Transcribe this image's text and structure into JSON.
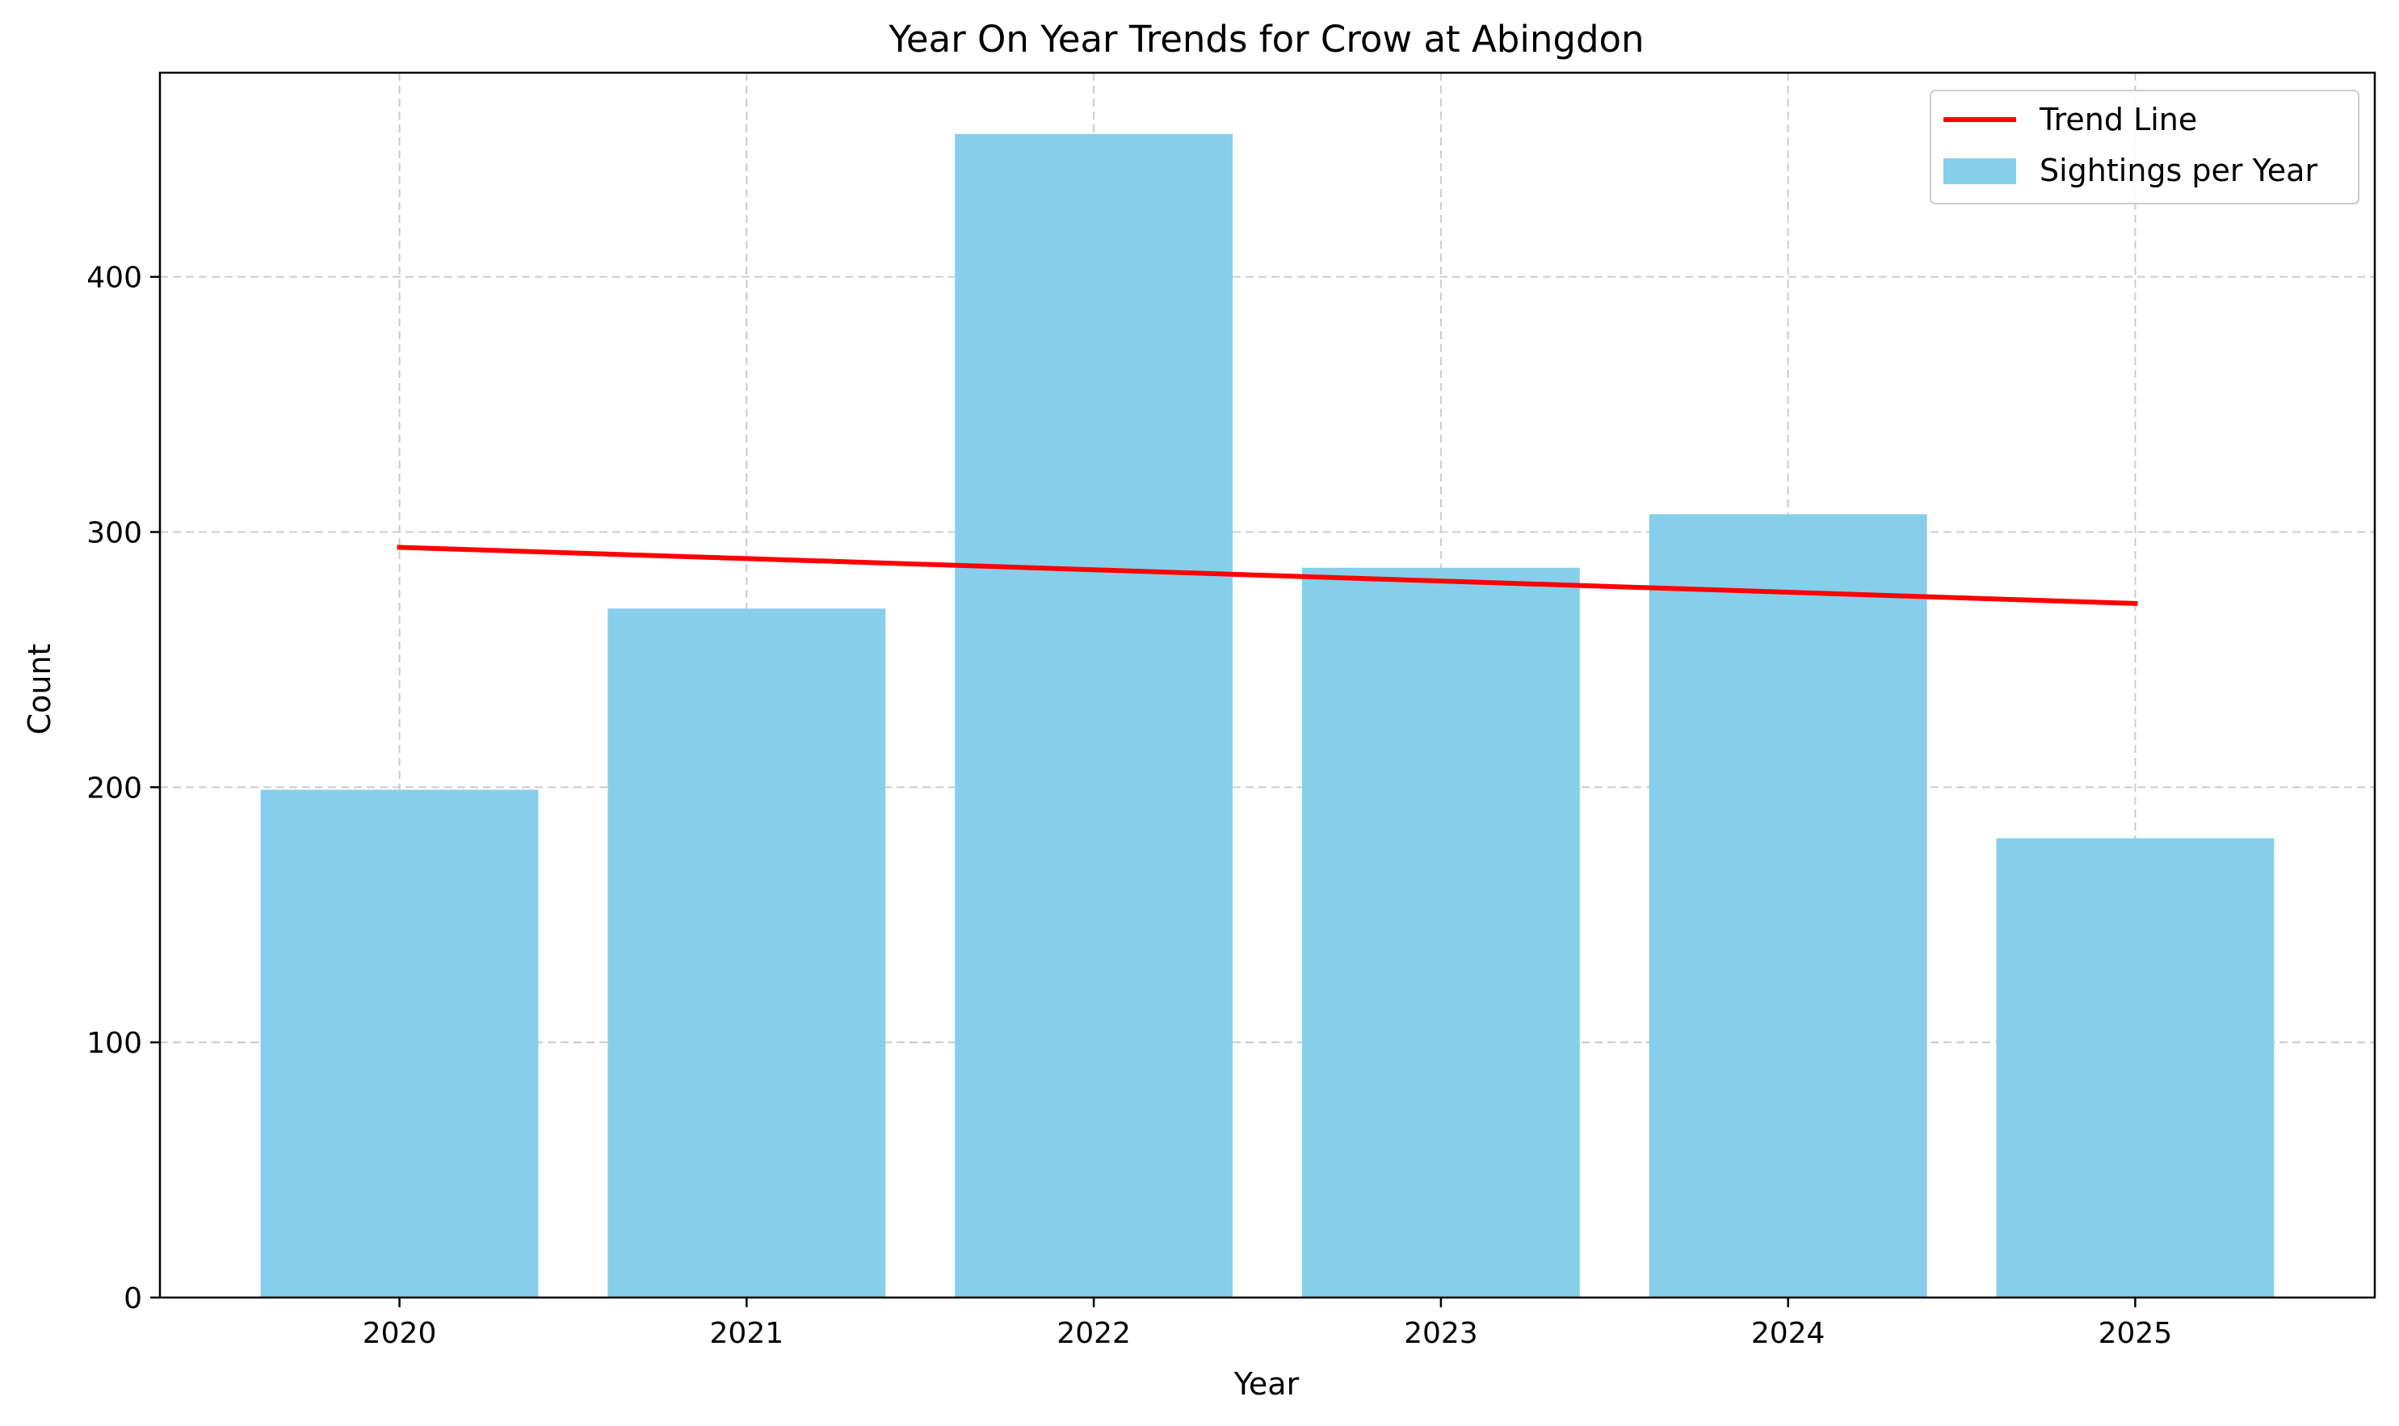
{
  "chart_data": {
    "type": "bar",
    "title": "Year On Year Trends for Crow at Abingdon",
    "xlabel": "Year",
    "ylabel": "Count",
    "categories": [
      "2020",
      "2021",
      "2022",
      "2023",
      "2024",
      "2025"
    ],
    "series": [
      {
        "name": "Sightings per Year",
        "type": "bar",
        "values": [
          199,
          270,
          456,
          286,
          307,
          180
        ],
        "color": "#87CEEB"
      },
      {
        "name": "Trend Line",
        "type": "line",
        "values": [
          294,
          289.6,
          285.2,
          280.8,
          276.4,
          272
        ],
        "color": "#FF0000"
      }
    ],
    "ylim": [
      0,
      480
    ],
    "yticks": [
      0,
      100,
      200,
      300,
      400
    ],
    "grid": true,
    "legend": {
      "position": "top-right",
      "order": [
        "Trend Line",
        "Sightings per Year"
      ]
    }
  }
}
